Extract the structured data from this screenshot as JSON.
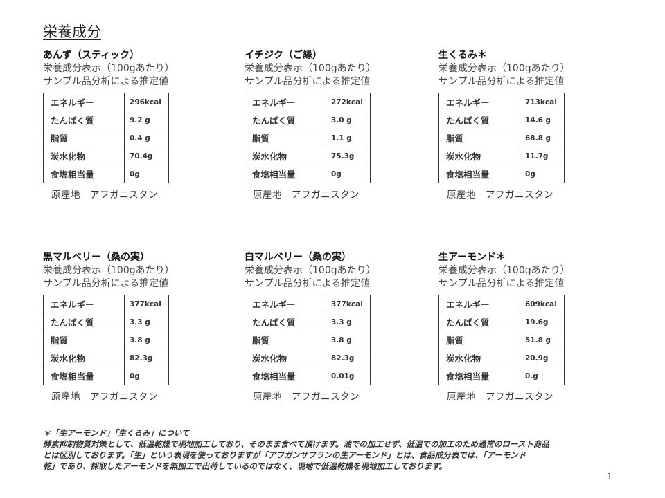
{
  "title": "栄養成分",
  "sub1": "栄養成分表示（100gあたり）",
  "sub2": "サンプル品分析による推定値",
  "row_labels": [
    "エネルギー",
    "たんぱく質",
    "脂質",
    "炭水化物",
    "食塩相当量"
  ],
  "origin": "原産地　アフガニスタン",
  "products": [
    {
      "name": "あんず（スティック）",
      "values": [
        "296kcal",
        "9.2 g",
        "0.4 g",
        "70.4g",
        "0g"
      ]
    },
    {
      "name": "イチジク（ご縁）",
      "values": [
        "272kcal",
        "3.0 g",
        "1.1 g",
        "75.3g",
        "0g"
      ]
    },
    {
      "name": "生くるみ＊",
      "values": [
        "713kcal",
        "14.6 g",
        "68.8 g",
        "11.7g",
        "0g"
      ]
    },
    {
      "name": "黒マルベリー（桑の実）",
      "values": [
        "377kcal",
        "3.3 g",
        "3.8 g",
        "82.3g",
        "0g"
      ]
    },
    {
      "name": "白マルベリー（桑の実）",
      "values": [
        "377kcal",
        "3.3 g",
        "3.8 g",
        "82.3g",
        "0.01g"
      ]
    },
    {
      "name": "生アーモンド＊",
      "values": [
        "609kcal",
        "19.6g",
        "51.8 g",
        "20.9g",
        "0.g"
      ]
    }
  ],
  "note": {
    "heading": "＊「生アーモンド」「生くるみ」について",
    "lines": [
      "酵素抑制物質対策として、低温乾燥で現地加工しており、そのまま食べて頂けます。油での加工せず、低温での加工のため通常のロースト商品",
      "とは区別しております。「生」という表現を使っておりますが「アフガンサフランの生アーモンド」とは、食品成分表では、「アーモンド",
      "乾」であり、採取したアーモンドを無加工で出荷しているのではなく、現地で低温乾燥を現地加工しております。"
    ]
  },
  "page_number": "1"
}
